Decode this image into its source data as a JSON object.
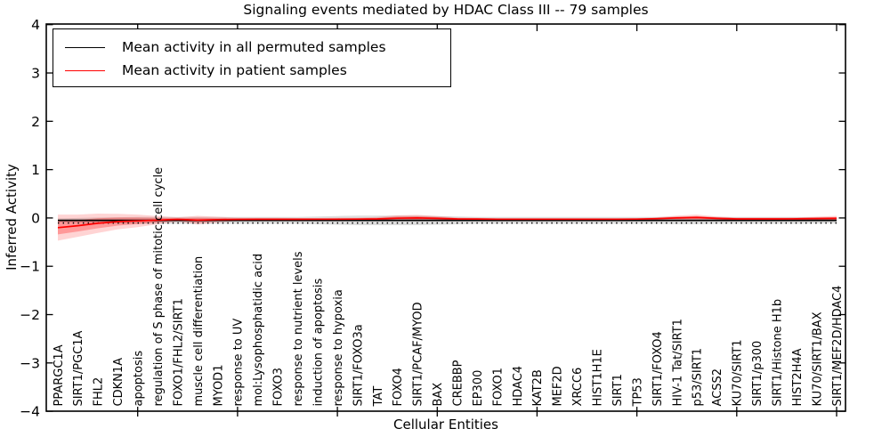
{
  "figure": {
    "title": "Signaling events mediated by HDAC Class III -- 79 samples",
    "xlabel": "Cellular Entities",
    "ylabel": "Inferred Activity",
    "legend": {
      "entries": [
        {
          "label": "Mean activity in all permuted samples",
          "color": "#000000"
        },
        {
          "label": "Mean activity in patient samples",
          "color": "#ff0000"
        }
      ]
    }
  },
  "chart_data": {
    "type": "line",
    "title": "Signaling events mediated by HDAC Class III -- 79 samples",
    "xlabel": "Cellular Entities",
    "ylabel": "Inferred Activity",
    "ylim": [
      -4,
      4
    ],
    "yticks": [
      4,
      3,
      2,
      1,
      0,
      -1,
      -2,
      -3,
      -4
    ],
    "grid": false,
    "legend_position": "upper left",
    "categories": [
      "PPARGC1A",
      "SIRT1/PGC1A",
      "FHL2",
      "CDKN1A",
      "apoptosis",
      "regulation of S phase of mitotic cell cycle",
      "FOXO1/FHL2/SIRT1",
      "muscle cell differentiation",
      "MYOD1",
      "response to UV",
      "mol:Lysophosphatidic acid",
      "FOXO3",
      "response to nutrient levels",
      "induction of apoptosis",
      "response to hypoxia",
      "SIRT1/FOXO3a",
      "TAT",
      "FOXO4",
      "SIRT1/PCAF/MYOD",
      "BAX",
      "CREBBP",
      "EP300",
      "FOXO1",
      "HDAC4",
      "KAT2B",
      "MEF2D",
      "XRCC6",
      "HIST1H1E",
      "SIRT1",
      "TP53",
      "SIRT1/FOXO4",
      "HIV-1 Tat/SIRT1",
      "p53/SIRT1",
      "ACSS2",
      "KU70/SIRT1",
      "SIRT1/p300",
      "SIRT1/Histone H1b",
      "HIST2H4A",
      "KU70/SIRT1/BAX",
      "SIRT1/MEF2D/HDAC4"
    ],
    "series": [
      {
        "name": "Mean activity in all permuted samples",
        "color": "#000000",
        "linestyle": "solid",
        "band_color": "rgba(0,0,0,0.13)",
        "values": [
          -0.05,
          -0.05,
          -0.05,
          -0.05,
          -0.05,
          -0.05,
          -0.05,
          -0.05,
          -0.05,
          -0.05,
          -0.05,
          -0.05,
          -0.05,
          -0.05,
          -0.05,
          -0.05,
          -0.05,
          -0.05,
          -0.05,
          -0.05,
          -0.05,
          -0.05,
          -0.05,
          -0.05,
          -0.05,
          -0.05,
          -0.05,
          -0.05,
          -0.05,
          -0.05,
          -0.05,
          -0.05,
          -0.05,
          -0.05,
          -0.05,
          -0.05,
          -0.05,
          -0.05,
          -0.05,
          -0.05
        ],
        "std": [
          0.04,
          0.05,
          0.06,
          0.065,
          0.07,
          0.07,
          0.07,
          0.07,
          0.07,
          0.07,
          0.07,
          0.07,
          0.07,
          0.08,
          0.09,
          0.1,
          0.1,
          0.1,
          0.1,
          0.09,
          0.08,
          0.07,
          0.07,
          0.07,
          0.07,
          0.07,
          0.07,
          0.07,
          0.07,
          0.07,
          0.07,
          0.075,
          0.075,
          0.07,
          0.07,
          0.07,
          0.07,
          0.07,
          0.065,
          0.06
        ]
      },
      {
        "name": "Mean activity in patient samples",
        "color": "#ff0000",
        "linestyle": "solid",
        "band_color": "rgba(255,0,0,0.17)",
        "band_inner_color": "rgba(255,0,0,0.28)",
        "values": [
          -0.2,
          -0.16,
          -0.11,
          -0.075,
          -0.06,
          -0.045,
          -0.03,
          -0.045,
          -0.035,
          -0.03,
          -0.028,
          -0.027,
          -0.027,
          -0.026,
          -0.025,
          -0.024,
          -0.02,
          -0.005,
          0.0,
          -0.01,
          -0.02,
          -0.022,
          -0.025,
          -0.025,
          -0.025,
          -0.025,
          -0.025,
          -0.025,
          -0.025,
          -0.024,
          -0.015,
          0.0,
          0.01,
          -0.01,
          -0.02,
          -0.02,
          -0.02,
          -0.018,
          -0.012,
          -0.01
        ],
        "std": [
          0.27,
          0.23,
          0.2,
          0.16,
          0.13,
          0.085,
          0.045,
          0.09,
          0.06,
          0.035,
          0.03,
          0.03,
          0.025,
          0.025,
          0.03,
          0.03,
          0.04,
          0.06,
          0.065,
          0.05,
          0.03,
          0.025,
          0.02,
          0.02,
          0.02,
          0.02,
          0.02,
          0.02,
          0.02,
          0.02,
          0.03,
          0.05,
          0.06,
          0.04,
          0.03,
          0.03,
          0.03,
          0.03,
          0.04,
          0.055
        ]
      },
      {
        "name": "baseline-dotted",
        "color": "#000000",
        "linestyle": "dotted",
        "value": -0.105
      }
    ]
  }
}
